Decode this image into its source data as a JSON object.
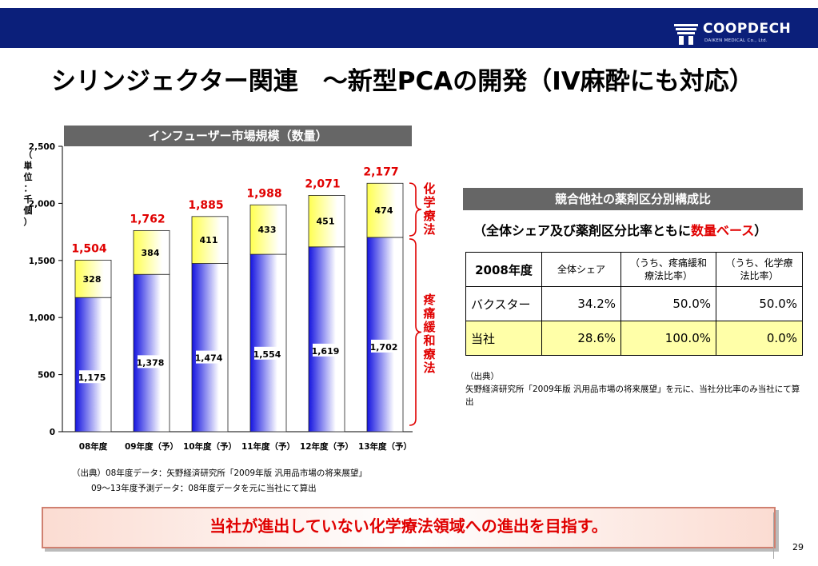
{
  "header": {
    "logo_text": "COOPDECH",
    "logo_sub": "DAIKEN MEDICAL Co., Ltd."
  },
  "page_title": "シリンジェクター関連　～新型PCAの開発（IV麻酔にも対応）",
  "chart": {
    "heading": "インフューザー市場規模（数量）",
    "unit_label_chars": [
      "（",
      "単",
      "位",
      "：",
      "千",
      "個",
      "）"
    ],
    "bracket_labels": {
      "chemo": [
        "化",
        "学",
        "療",
        "法"
      ],
      "pain": [
        "疼",
        "痛",
        "緩",
        "和",
        "療",
        "法"
      ]
    }
  },
  "chart_data": {
    "type": "bar",
    "stacked": true,
    "categories": [
      "08年度",
      "09年度（予）",
      "10年度（予）",
      "11年度（予）",
      "12年度（予）",
      "13年度（予）"
    ],
    "series": [
      {
        "values": [
          1175,
          1378,
          1474,
          1554,
          1619,
          1702
        ],
        "color": "#1414e0"
      },
      {
        "values": [
          328,
          384,
          411,
          433,
          451,
          474
        ],
        "color": "#ffff50"
      }
    ],
    "totals": [
      "1,504",
      "1,762",
      "1,885",
      "1,988",
      "2,071",
      "2,177"
    ],
    "bottom_labels": [
      "1,175",
      "1,378",
      "1,474",
      "1,554",
      "1,619",
      "1,702"
    ],
    "top_labels": [
      "328",
      "384",
      "411",
      "433",
      "451",
      "474"
    ],
    "ylim": [
      0,
      2500
    ],
    "yticks": [
      0,
      500,
      1000,
      1500,
      2000,
      2500
    ],
    "ytick_labels": [
      "0",
      "500",
      "1,000",
      "1,500",
      "2,000",
      "2,500"
    ],
    "total_color": "#e00000",
    "grid": false
  },
  "right_panel": {
    "heading": "競合他社の薬剤区分別構成比",
    "sub_prefix": "（全体シェア及び薬剤区分比率ともに",
    "sub_red": "数量ベース",
    "sub_suffix": "）",
    "table": {
      "headers": [
        "2008年度",
        "全体シェア",
        "（うち、疼痛緩和療法比率）",
        "（うち、化学療法比率）"
      ],
      "rows": [
        {
          "name": "バクスター",
          "share": "34.2%",
          "pain": "50.0%",
          "chemo": "50.0%"
        },
        {
          "name": "当社",
          "share": "28.6%",
          "pain": "100.0%",
          "chemo": "0.0%"
        }
      ]
    },
    "source_label": "（出典）",
    "source_text": "矢野経済研究所「2009年版 汎用品市場の将来展望」を元に、当社分比率のみ当社にて算出"
  },
  "left_notes": {
    "line1": "（出典）08年度データ：矢野経済研究所「2009年版 汎用品市場の将来展望」",
    "line2": "09～13年度予測データ：08年度データを元に当社にて算出"
  },
  "banner_text": "当社が進出していない化学療法領域への進出を目指す。",
  "page_number": "29",
  "colors": {
    "header_bar": "#0b1f7a",
    "accent_red": "#e00000",
    "heading_grey": "#666666"
  }
}
